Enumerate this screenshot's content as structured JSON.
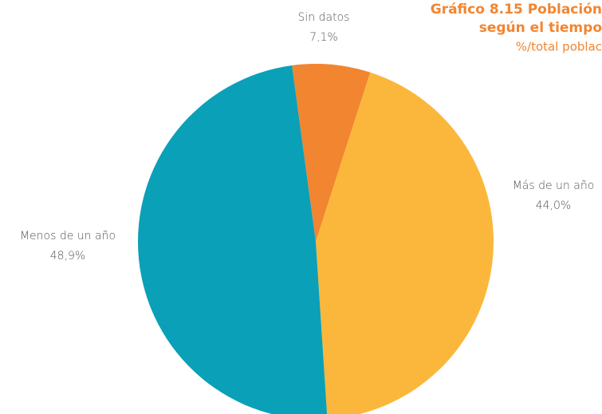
{
  "chart_data": {
    "type": "pie",
    "title": [
      "Gráfico 8.15 Población",
      "según el  tiempo"
    ],
    "subtitle": "%/total poblac",
    "categories": [
      "Sin datos",
      "Más de un año",
      "Menos de un año"
    ],
    "values": [
      7.1,
      44.0,
      48.9
    ],
    "value_labels": [
      "7,1%",
      "44,0%",
      "48,9%"
    ],
    "colors": [
      "#f28530",
      "#fbb73b",
      "#0aa0b8"
    ]
  }
}
